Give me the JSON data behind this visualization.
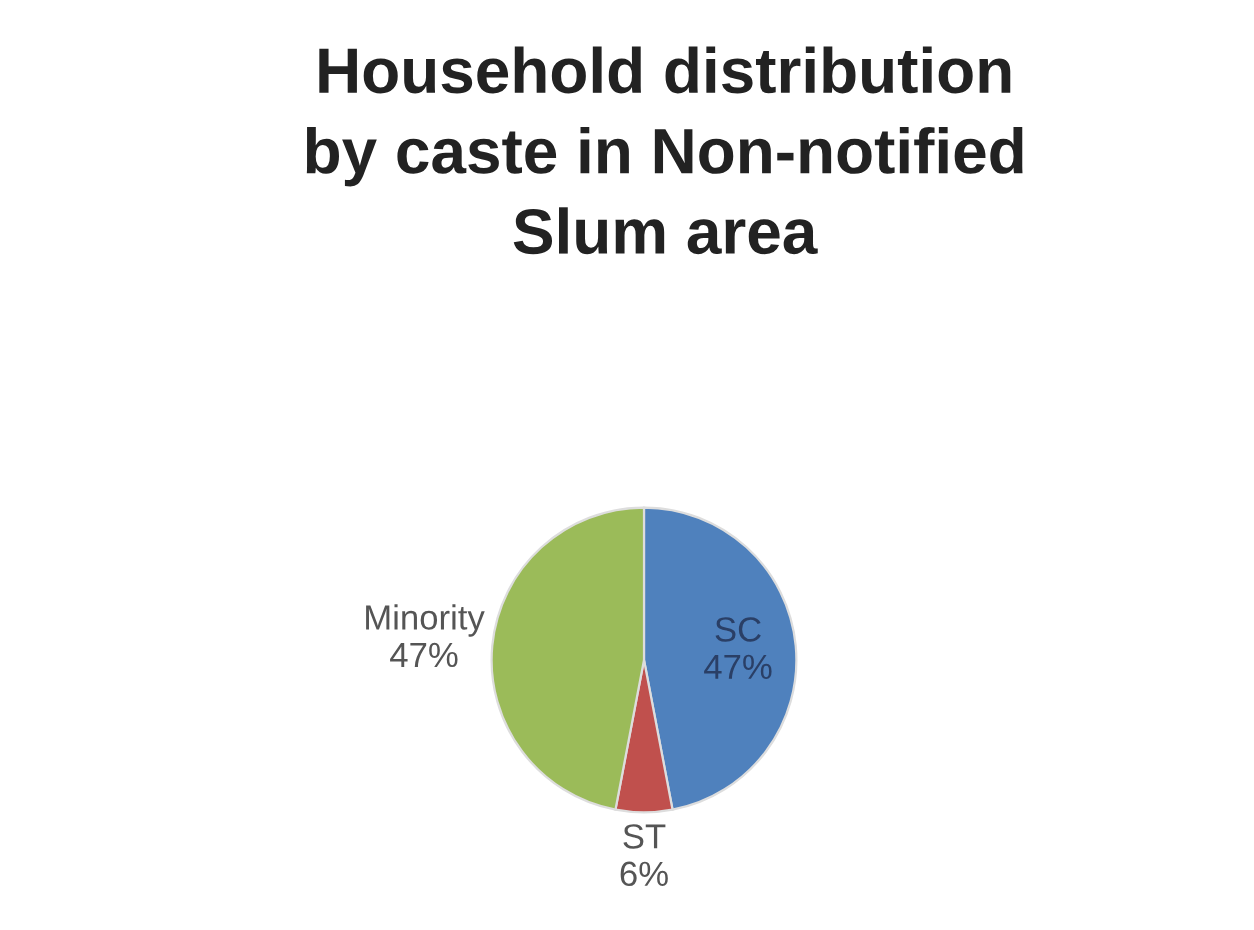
{
  "chart_data": {
    "type": "pie",
    "title": "Household distribution\nby caste in Non-notified\nSlum area",
    "categories": [
      "SC",
      "ST",
      "Minority"
    ],
    "values": [
      47,
      6,
      47
    ],
    "value_labels": [
      "47%",
      "6%",
      "47%"
    ],
    "colors": [
      "#4f81bd",
      "#c0504d",
      "#9bbb59"
    ],
    "legend": false
  }
}
